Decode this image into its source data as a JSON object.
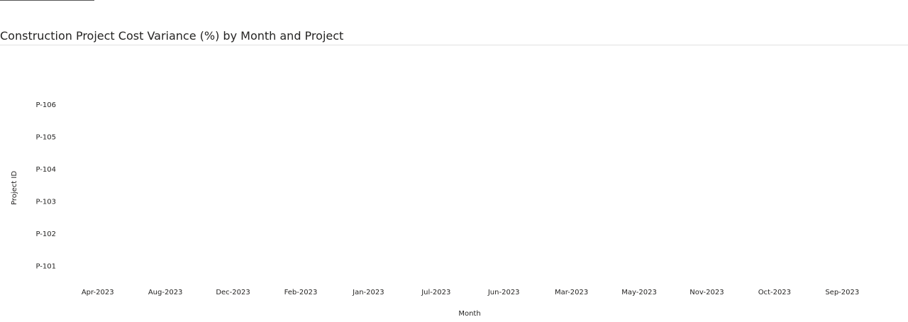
{
  "chart_data": {
    "type": "heatmap",
    "title": "Construction Project Cost Variance (%) by Month and Project",
    "x_label": "Month",
    "y_label": "Project ID",
    "categories": [
      "Apr-2023",
      "Aug-2023",
      "Dec-2023",
      "Feb-2023",
      "Jan-2023",
      "Jul-2023",
      "Jun-2023",
      "Mar-2023",
      "May-2023",
      "Nov-2023",
      "Oct-2023",
      "Sep-2023"
    ],
    "y_categories": [
      "P-101",
      "P-102",
      "P-103",
      "P-104",
      "P-105",
      "P-106"
    ]
  }
}
